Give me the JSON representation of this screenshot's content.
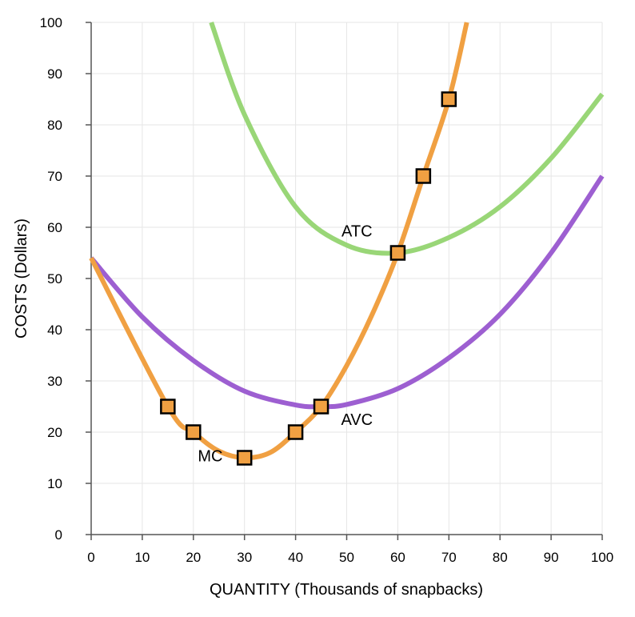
{
  "chart_data": {
    "type": "line",
    "xlabel": "QUANTITY (Thousands of snapbacks)",
    "ylabel": "COSTS (Dollars)",
    "xlim": [
      0,
      100
    ],
    "ylim": [
      0,
      100
    ],
    "xticks": [
      0,
      10,
      20,
      30,
      40,
      50,
      60,
      70,
      80,
      90,
      100
    ],
    "yticks": [
      0,
      10,
      20,
      30,
      40,
      50,
      60,
      70,
      80,
      90,
      100
    ],
    "grid": true,
    "series": [
      {
        "name": "ATC",
        "color": "#99d677",
        "points": [
          [
            23.5,
            100
          ],
          [
            30,
            82
          ],
          [
            40,
            64
          ],
          [
            50,
            56.5
          ],
          [
            60,
            55
          ],
          [
            70,
            58
          ],
          [
            80,
            64
          ],
          [
            90,
            73.5
          ],
          [
            100,
            86
          ]
        ]
      },
      {
        "name": "AVC",
        "color": "#9d5fd1",
        "points": [
          [
            0,
            54
          ],
          [
            10,
            42.5
          ],
          [
            20,
            34
          ],
          [
            30,
            28
          ],
          [
            40,
            25.3
          ],
          [
            45,
            25
          ],
          [
            50,
            25.4
          ],
          [
            60,
            28.5
          ],
          [
            70,
            34.5
          ],
          [
            80,
            43
          ],
          [
            90,
            55
          ],
          [
            100,
            70
          ]
        ]
      },
      {
        "name": "MC",
        "color": "#f0a042",
        "points": [
          [
            0,
            54
          ],
          [
            15,
            25
          ],
          [
            20,
            20
          ],
          [
            25,
            16.3
          ],
          [
            30,
            15
          ],
          [
            35,
            16
          ],
          [
            40,
            20
          ],
          [
            45,
            25
          ],
          [
            50,
            33
          ],
          [
            55,
            43
          ],
          [
            60,
            55
          ],
          [
            65,
            70
          ],
          [
            70,
            85
          ],
          [
            73.5,
            100
          ]
        ]
      }
    ],
    "markers": {
      "series": "MC",
      "color": "#f0a042",
      "points": [
        [
          15,
          25
        ],
        [
          20,
          20
        ],
        [
          30,
          15
        ],
        [
          40,
          20
        ],
        [
          45,
          25
        ],
        [
          60,
          55
        ],
        [
          65,
          70
        ],
        [
          70,
          85
        ]
      ]
    },
    "annotations": [
      {
        "text": "ATC",
        "x": 52,
        "y": 58.2
      },
      {
        "text": "AVC",
        "x": 52,
        "y": 21.4
      },
      {
        "text": "MC",
        "x": 23.3,
        "y": 14.3
      }
    ]
  }
}
